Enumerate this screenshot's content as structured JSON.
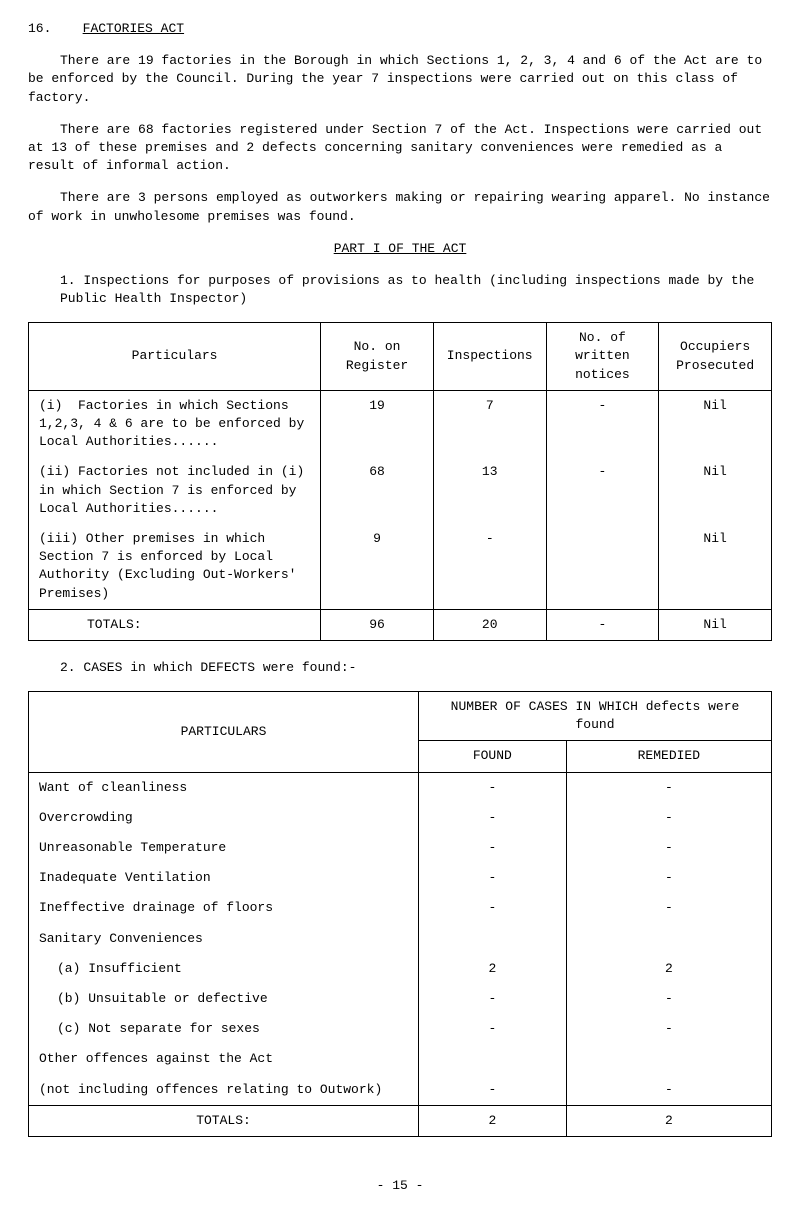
{
  "header": {
    "section_num": "16.",
    "section_title": "FACTORIES ACT"
  },
  "paras": {
    "p1": "There are 19 factories in the Borough in which Sections 1, 2, 3, 4 and 6 of the Act are to be enforced by the Council.  During the year 7 inspections were carried out on this class of factory.",
    "p2": "There are 68 factories registered under Section 7 of the Act.  Inspections were carried out at 13 of these premises and 2 defects concerning sanitary conveniences were remedied as a result of informal action.",
    "p3": "There are 3 persons employed as outworkers making or repairing wearing apparel.  No instance of work in unwholesome premises was found."
  },
  "part_header": "PART I OF THE ACT",
  "subsection1": "1.  Inspections for purposes of provisions as to health (including inspections made by the Public Health Inspector)",
  "table1": {
    "headers": {
      "particulars": "Particulars",
      "register": "No. on Register",
      "inspections": "Inspections",
      "notices": "No. of written notices",
      "occupiers": "Occupiers Prosecuted"
    },
    "rows": [
      {
        "p": "(i)  Factories in which Sections 1,2,3, 4 & 6 are to be enforced by Local Authorities......",
        "r": "19",
        "i": "7",
        "n": "-",
        "o": "Nil"
      },
      {
        "p": "(ii) Factories not included in (i) in which Section 7 is enforced by Local Authorities......",
        "r": "68",
        "i": "13",
        "n": "-",
        "o": "Nil"
      },
      {
        "p": "(iii) Other premises in which Section 7 is enforced by Local Authority (Excluding Out-Workers' Premises)",
        "r": "9",
        "i": "-",
        "n": "",
        "o": "Nil"
      }
    ],
    "totals": {
      "label": "TOTALS:",
      "r": "96",
      "i": "20",
      "n": "-",
      "o": "Nil"
    }
  },
  "subsection2": "2.  CASES in which DEFECTS were found:-",
  "table2": {
    "headers": {
      "particulars": "PARTICULARS",
      "super": "NUMBER OF CASES IN WHICH defects were found",
      "found": "FOUND",
      "remedied": "REMEDIED"
    },
    "rows": [
      {
        "p": "Want of cleanliness",
        "f": "-",
        "r": "-"
      },
      {
        "p": "Overcrowding",
        "f": "-",
        "r": "-"
      },
      {
        "p": "Unreasonable Temperature",
        "f": "-",
        "r": "-"
      },
      {
        "p": "Inadequate Ventilation",
        "f": "-",
        "r": "-"
      },
      {
        "p": "Ineffective drainage of floors",
        "f": "-",
        "r": "-"
      },
      {
        "p": "Sanitary Conveniences",
        "f": "",
        "r": ""
      },
      {
        "p": "(a) Insufficient",
        "f": "2",
        "r": "2",
        "sub": true
      },
      {
        "p": "(b) Unsuitable or defective",
        "f": "-",
        "r": "-",
        "sub": true
      },
      {
        "p": "(c) Not separate for sexes",
        "f": "-",
        "r": "-",
        "sub": true
      },
      {
        "p": "Other offences against the Act",
        "f": "",
        "r": ""
      },
      {
        "p": "(not including offences relating to Outwork)",
        "f": "-",
        "r": "-"
      }
    ],
    "totals": {
      "label": "TOTALS:",
      "f": "2",
      "r": "2"
    }
  },
  "page_num": "- 15 -"
}
